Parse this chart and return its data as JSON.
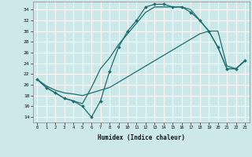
{
  "bg_color": "#cce8e8",
  "grid_color": "#ffffff",
  "line_color": "#1a6e6e",
  "xlabel": "Humidex (Indice chaleur)",
  "xlim": [
    -0.5,
    23.5
  ],
  "ylim": [
    13,
    35.5
  ],
  "yticks": [
    14,
    16,
    18,
    20,
    22,
    24,
    26,
    28,
    30,
    32,
    34
  ],
  "xticks": [
    0,
    1,
    2,
    3,
    4,
    5,
    6,
    7,
    8,
    9,
    10,
    11,
    12,
    13,
    14,
    15,
    16,
    17,
    18,
    19,
    20,
    21,
    22,
    23
  ],
  "line1_x": [
    0,
    1,
    2,
    3,
    4,
    5,
    6,
    7,
    8,
    9,
    10,
    11,
    12,
    13,
    14,
    15,
    16,
    17,
    18,
    19,
    20,
    21,
    22,
    23
  ],
  "line1_y": [
    21.0,
    19.5,
    18.5,
    17.5,
    17.0,
    16.0,
    14.0,
    17.0,
    22.5,
    27.0,
    30.0,
    32.0,
    34.5,
    35.0,
    35.0,
    34.5,
    34.5,
    33.5,
    32.0,
    30.0,
    27.0,
    23.0,
    23.0,
    24.5
  ],
  "line2_x": [
    0,
    1,
    2,
    3,
    4,
    5,
    6,
    7,
    8,
    9,
    10,
    11,
    12,
    13,
    14,
    15,
    16,
    17,
    18,
    19,
    20,
    21,
    22,
    23
  ],
  "line2_y": [
    21.0,
    19.5,
    18.5,
    17.5,
    17.0,
    16.5,
    19.5,
    23.0,
    25.0,
    27.5,
    29.5,
    31.5,
    33.5,
    34.5,
    34.5,
    34.5,
    34.5,
    34.0,
    32.0,
    30.0,
    27.0,
    23.0,
    23.0,
    24.5
  ],
  "line3_x": [
    0,
    1,
    2,
    3,
    4,
    5,
    6,
    7,
    8,
    9,
    10,
    11,
    12,
    13,
    14,
    15,
    16,
    17,
    18,
    19,
    20,
    21,
    22,
    23
  ],
  "line3_y": [
    21.0,
    19.8,
    19.0,
    18.5,
    18.3,
    18.0,
    18.5,
    19.0,
    19.5,
    20.5,
    21.5,
    22.5,
    23.5,
    24.5,
    25.5,
    26.5,
    27.5,
    28.5,
    29.5,
    30.0,
    30.0,
    23.5,
    23.0,
    24.5
  ]
}
